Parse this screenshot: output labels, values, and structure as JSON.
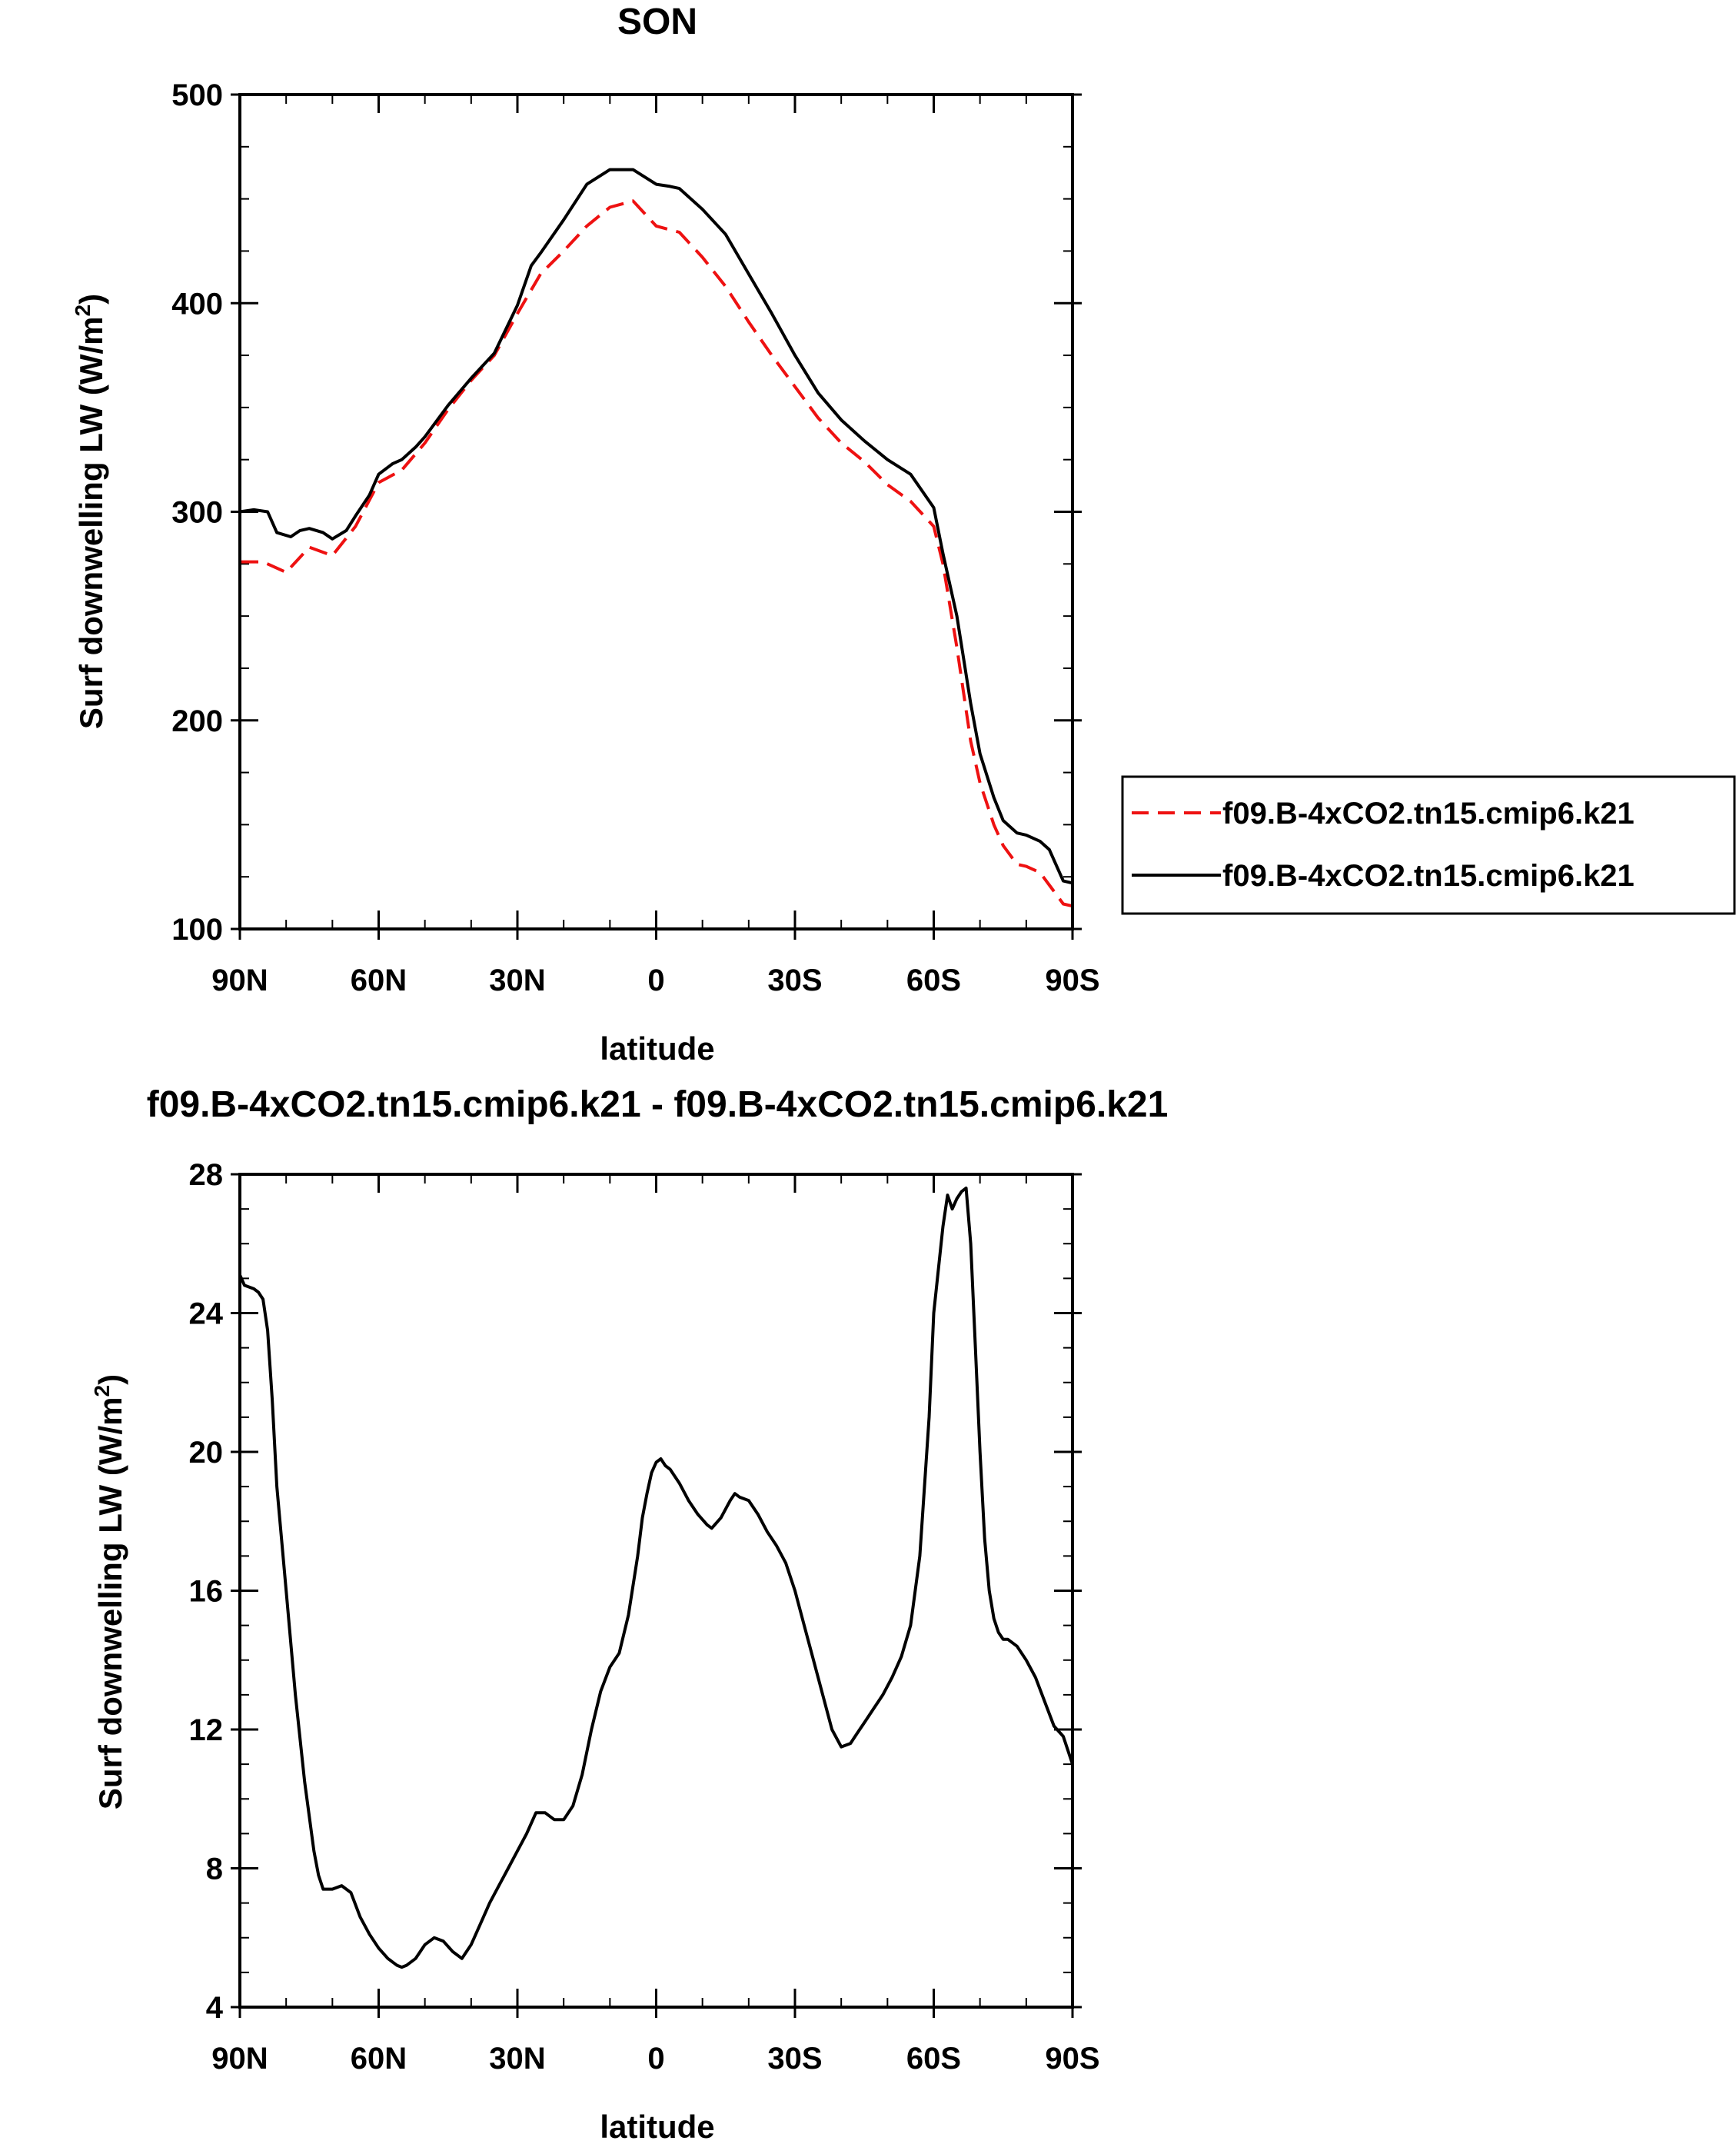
{
  "charts": [
    {
      "title": "SON",
      "xlabel": "latitude",
      "ylabel_main": "Surf downwelling LW (W/m",
      "ylabel_sup": "2",
      "ylabel_tail": ")",
      "x_ticks": [
        "90N",
        "60N",
        "30N",
        "0",
        "30S",
        "60S",
        "90S"
      ]
    },
    {
      "title": "f09.B-4xCO2.tn15.cmip6.k21 - f09.B-4xCO2.tn15.cmip6.k21",
      "xlabel": "latitude",
      "ylabel_main": "Surf downwelling LW (W/m",
      "ylabel_sup": "2",
      "ylabel_tail": ")",
      "x_ticks": [
        "90N",
        "60N",
        "30N",
        "0",
        "30S",
        "60S",
        "90S"
      ]
    }
  ],
  "colors": {
    "dashed_series": "#ee1111",
    "solid_series": "#000000"
  },
  "chart_data": [
    {
      "type": "line",
      "title": "SON",
      "xlabel": "latitude",
      "ylabel": "Surf downwelling LW (W/m2)",
      "xlim": [
        90,
        -90
      ],
      "ylim": [
        100,
        500
      ],
      "y_ticks": [
        100,
        200,
        300,
        400,
        500
      ],
      "legend": {
        "placement": "right-outside",
        "entries": [
          "f09.B-4xCO2.tn15.cmip6.k21",
          "f09.B-4xCO2.tn15.cmip6.k21"
        ]
      },
      "series": [
        {
          "name": "f09.B-4xCO2.tn15.cmip6.k21",
          "style": "dashed",
          "color": "#ee1111",
          "x": [
            90,
            85,
            80,
            75,
            70,
            65,
            60,
            55,
            50,
            45,
            40,
            35,
            30,
            25,
            20,
            15,
            10,
            5,
            0,
            -5,
            -10,
            -15,
            -20,
            -25,
            -30,
            -35,
            -40,
            -45,
            -50,
            -55,
            -60,
            -62,
            -65,
            -68,
            -70,
            -73,
            -75,
            -78,
            -80,
            -83,
            -85,
            -88,
            -90
          ],
          "y": [
            276,
            276,
            271,
            283,
            279,
            293,
            314,
            320,
            333,
            349,
            363,
            375,
            395,
            414,
            425,
            437,
            446,
            449,
            437,
            434,
            422,
            408,
            391,
            375,
            360,
            345,
            333,
            324,
            313,
            305,
            293,
            275,
            235,
            190,
            170,
            150,
            140,
            131,
            130,
            127,
            121,
            112,
            111
          ]
        },
        {
          "name": "f09.B-4xCO2.tn15.cmip6.k21",
          "style": "solid",
          "color": "#000000",
          "x": [
            90,
            87,
            84,
            82,
            79,
            77,
            75,
            72,
            70,
            67,
            65,
            62,
            60,
            57,
            55,
            52,
            50,
            45,
            40,
            35,
            30,
            27,
            25,
            20,
            15,
            10,
            5,
            0,
            -3,
            -5,
            -10,
            -15,
            -20,
            -25,
            -30,
            -35,
            -40,
            -45,
            -50,
            -55,
            -60,
            -62,
            -65,
            -68,
            -70,
            -73,
            -75,
            -78,
            -80,
            -83,
            -85,
            -88,
            -90
          ],
          "y": [
            300,
            301,
            300,
            290,
            288,
            291,
            292,
            290,
            287,
            291,
            298,
            308,
            318,
            323,
            325,
            331,
            336,
            351,
            364,
            376,
            399,
            418,
            424,
            440,
            457,
            464,
            464,
            457,
            456,
            455,
            445,
            433,
            414,
            395,
            375,
            357,
            344,
            334,
            325,
            318,
            302,
            280,
            250,
            208,
            184,
            163,
            152,
            146,
            145,
            142,
            138,
            123,
            122
          ]
        }
      ]
    },
    {
      "type": "line",
      "title": "f09.B-4xCO2.tn15.cmip6.k21 - f09.B-4xCO2.tn15.cmip6.k21",
      "xlabel": "latitude",
      "ylabel": "Surf downwelling LW (W/m2)",
      "xlim": [
        90,
        -90
      ],
      "ylim": [
        4,
        28
      ],
      "y_ticks": [
        4,
        8,
        12,
        16,
        20,
        24,
        28
      ],
      "series": [
        {
          "style": "solid",
          "color": "#000000",
          "x": [
            90,
            89,
            87,
            86,
            85,
            84,
            83,
            82,
            80,
            78,
            76,
            74,
            73,
            72,
            70,
            68,
            66,
            64,
            62,
            60,
            58,
            57,
            56,
            55,
            54,
            52,
            50,
            48,
            46,
            44,
            42,
            40,
            38,
            36,
            34,
            32,
            30,
            28,
            26,
            24,
            22,
            20,
            18,
            16,
            14,
            12,
            10,
            8,
            6,
            4,
            3,
            2,
            1,
            0,
            -1,
            -2,
            -3,
            -5,
            -7,
            -9,
            -11,
            -12,
            -14,
            -16,
            -17,
            -18,
            -20,
            -22,
            -24,
            -26,
            -28,
            -30,
            -32,
            -34,
            -36,
            -38,
            -40,
            -42,
            -43,
            -44,
            -45,
            -47,
            -49,
            -51,
            -53,
            -55,
            -57,
            -59,
            -60,
            -62,
            -63,
            -64,
            -65,
            -66,
            -67,
            -68,
            -69,
            -70,
            -71,
            -72,
            -73,
            -74,
            -75,
            -76,
            -77,
            -78,
            -80,
            -82,
            -84,
            -86,
            -88,
            -90
          ],
          "y": [
            25.1,
            24.8,
            24.7,
            24.6,
            24.4,
            23.5,
            21.5,
            19,
            16,
            13,
            10.5,
            8.5,
            7.8,
            7.4,
            7.4,
            7.5,
            7.3,
            6.6,
            6.1,
            5.7,
            5.4,
            5.3,
            5.2,
            5.15,
            5.2,
            5.4,
            5.8,
            6.0,
            5.9,
            5.6,
            5.4,
            5.8,
            6.4,
            7.0,
            7.5,
            8.0,
            8.5,
            9.0,
            9.6,
            9.6,
            9.4,
            9.4,
            9.8,
            10.7,
            12.0,
            13.1,
            13.8,
            14.2,
            15.3,
            17.0,
            18.1,
            18.8,
            19.4,
            19.7,
            19.8,
            19.6,
            19.5,
            19.1,
            18.6,
            18.2,
            17.9,
            17.8,
            18.1,
            18.6,
            18.8,
            18.7,
            18.6,
            18.2,
            17.7,
            17.3,
            16.8,
            16.0,
            15.0,
            14.0,
            13.0,
            12.0,
            11.5,
            11.6,
            11.8,
            12.0,
            12.2,
            12.6,
            13.0,
            13.5,
            14.1,
            15.0,
            17.0,
            21.0,
            24.0,
            26.5,
            27.4,
            27.0,
            27.3,
            27.5,
            27.6,
            26.0,
            23.0,
            20.0,
            17.5,
            16.0,
            15.2,
            14.8,
            14.6,
            14.6,
            14.5,
            14.4,
            14.0,
            13.5,
            12.8,
            12.1,
            11.8,
            11.0
          ]
        }
      ]
    }
  ]
}
